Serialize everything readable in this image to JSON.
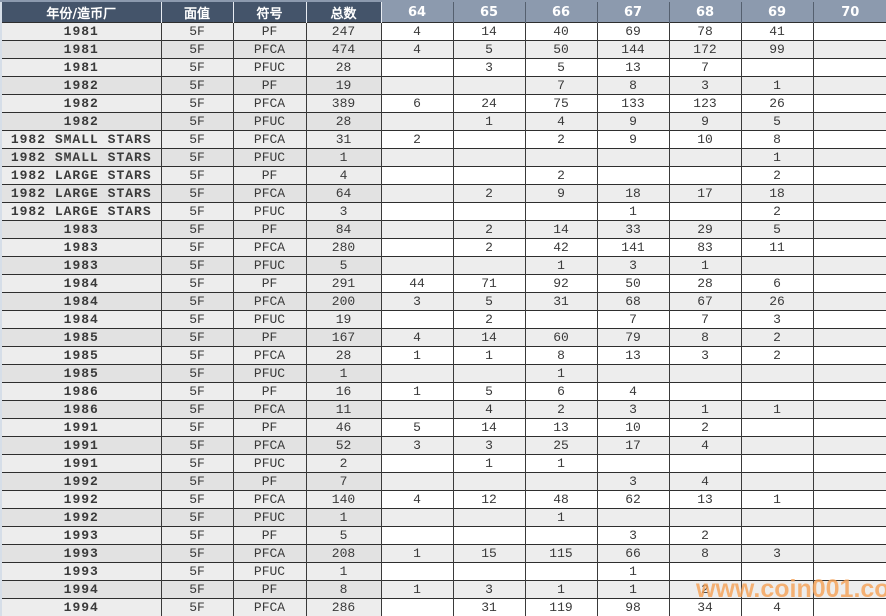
{
  "colors": {
    "header_dark": "#44546A",
    "header_light": "#8C9AAE",
    "year_text": "#6F7C90",
    "watermark_orange": "#F6A155"
  },
  "watermark": {
    "text": "www.coin001.com"
  },
  "table": {
    "headers": [
      "年份/造币厂",
      "面值",
      "符号",
      "总数",
      "64",
      "65",
      "66",
      "67",
      "68",
      "69",
      "70"
    ],
    "column_keys": [
      "year",
      "face-value",
      "symbol",
      "total",
      "grade-64",
      "grade-65",
      "grade-66",
      "grade-67",
      "grade-68",
      "grade-69",
      "grade-70"
    ],
    "rows": [
      [
        "1981",
        "5F",
        "PF",
        "247",
        "4",
        "14",
        "40",
        "69",
        "78",
        "41",
        ""
      ],
      [
        "1981",
        "5F",
        "PFCA",
        "474",
        "4",
        "5",
        "50",
        "144",
        "172",
        "99",
        ""
      ],
      [
        "1981",
        "5F",
        "PFUC",
        "28",
        "",
        "3",
        "5",
        "13",
        "7",
        "",
        ""
      ],
      [
        "1982",
        "5F",
        "PF",
        "19",
        "",
        "",
        "7",
        "8",
        "3",
        "1",
        ""
      ],
      [
        "1982",
        "5F",
        "PFCA",
        "389",
        "6",
        "24",
        "75",
        "133",
        "123",
        "26",
        ""
      ],
      [
        "1982",
        "5F",
        "PFUC",
        "28",
        "",
        "1",
        "4",
        "9",
        "9",
        "5",
        ""
      ],
      [
        "1982 SMALL STARS",
        "5F",
        "PFCA",
        "31",
        "2",
        "",
        "2",
        "9",
        "10",
        "8",
        ""
      ],
      [
        "1982 SMALL STARS",
        "5F",
        "PFUC",
        "1",
        "",
        "",
        "",
        "",
        "",
        "1",
        ""
      ],
      [
        "1982 LARGE STARS",
        "5F",
        "PF",
        "4",
        "",
        "",
        "2",
        "",
        "",
        "2",
        ""
      ],
      [
        "1982 LARGE STARS",
        "5F",
        "PFCA",
        "64",
        "",
        "2",
        "9",
        "18",
        "17",
        "18",
        ""
      ],
      [
        "1982 LARGE STARS",
        "5F",
        "PFUC",
        "3",
        "",
        "",
        "",
        "1",
        "",
        "2",
        ""
      ],
      [
        "1983",
        "5F",
        "PF",
        "84",
        "",
        "2",
        "14",
        "33",
        "29",
        "5",
        ""
      ],
      [
        "1983",
        "5F",
        "PFCA",
        "280",
        "",
        "2",
        "42",
        "141",
        "83",
        "11",
        ""
      ],
      [
        "1983",
        "5F",
        "PFUC",
        "5",
        "",
        "",
        "1",
        "3",
        "1",
        "",
        ""
      ],
      [
        "1984",
        "5F",
        "PF",
        "291",
        "44",
        "71",
        "92",
        "50",
        "28",
        "6",
        ""
      ],
      [
        "1984",
        "5F",
        "PFCA",
        "200",
        "3",
        "5",
        "31",
        "68",
        "67",
        "26",
        ""
      ],
      [
        "1984",
        "5F",
        "PFUC",
        "19",
        "",
        "2",
        "",
        "7",
        "7",
        "3",
        ""
      ],
      [
        "1985",
        "5F",
        "PF",
        "167",
        "4",
        "14",
        "60",
        "79",
        "8",
        "2",
        ""
      ],
      [
        "1985",
        "5F",
        "PFCA",
        "28",
        "1",
        "1",
        "8",
        "13",
        "3",
        "2",
        ""
      ],
      [
        "1985",
        "5F",
        "PFUC",
        "1",
        "",
        "",
        "1",
        "",
        "",
        "",
        ""
      ],
      [
        "1986",
        "5F",
        "PF",
        "16",
        "1",
        "5",
        "6",
        "4",
        "",
        "",
        ""
      ],
      [
        "1986",
        "5F",
        "PFCA",
        "11",
        "",
        "4",
        "2",
        "3",
        "1",
        "1",
        ""
      ],
      [
        "1991",
        "5F",
        "PF",
        "46",
        "5",
        "14",
        "13",
        "10",
        "2",
        "",
        ""
      ],
      [
        "1991",
        "5F",
        "PFCA",
        "52",
        "3",
        "3",
        "25",
        "17",
        "4",
        "",
        ""
      ],
      [
        "1991",
        "5F",
        "PFUC",
        "2",
        "",
        "1",
        "1",
        "",
        "",
        "",
        ""
      ],
      [
        "1992",
        "5F",
        "PF",
        "7",
        "",
        "",
        "",
        "3",
        "4",
        "",
        ""
      ],
      [
        "1992",
        "5F",
        "PFCA",
        "140",
        "4",
        "12",
        "48",
        "62",
        "13",
        "1",
        ""
      ],
      [
        "1992",
        "5F",
        "PFUC",
        "1",
        "",
        "",
        "1",
        "",
        "",
        "",
        ""
      ],
      [
        "1993",
        "5F",
        "PF",
        "5",
        "",
        "",
        "",
        "3",
        "2",
        "",
        ""
      ],
      [
        "1993",
        "5F",
        "PFCA",
        "208",
        "1",
        "15",
        "115",
        "66",
        "8",
        "3",
        ""
      ],
      [
        "1993",
        "5F",
        "PFUC",
        "1",
        "",
        "",
        "",
        "1",
        "",
        "",
        ""
      ],
      [
        "1994",
        "5F",
        "PF",
        "8",
        "1",
        "3",
        "1",
        "1",
        "2",
        "",
        ""
      ],
      [
        "1994",
        "5F",
        "PFCA",
        "286",
        "",
        "31",
        "119",
        "98",
        "34",
        "4",
        ""
      ]
    ]
  }
}
